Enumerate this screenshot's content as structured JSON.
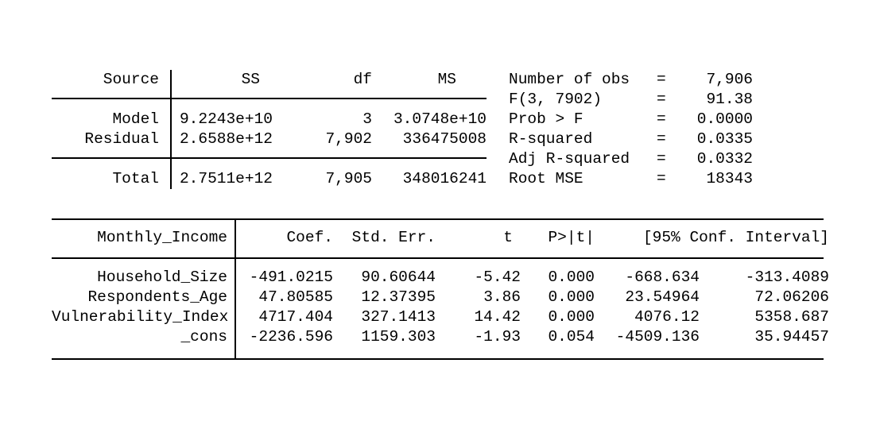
{
  "window": {
    "background": "#ffffff",
    "text_color": "#000000",
    "rule_color": "#000000",
    "description": "Stata regression results output"
  },
  "anova_table": {
    "header": {
      "source": "Source",
      "ss": "SS",
      "df": "df",
      "ms": "MS"
    },
    "rows": [
      {
        "source": "Model",
        "ss": "9.2243e+10",
        "df": "3",
        "ms": "3.0748e+10"
      },
      {
        "source": "Residual",
        "ss": "2.6588e+12",
        "df": "7,902",
        "ms": "336475008"
      },
      {
        "source": "Total",
        "ss": "2.7511e+12",
        "df": "7,905",
        "ms": "348016241"
      }
    ]
  },
  "fit_statistics": [
    {
      "label": "Number of obs",
      "eq": "=",
      "value": "7,906"
    },
    {
      "label": "F(3, 7902)",
      "eq": "=",
      "value": "91.38"
    },
    {
      "label": "Prob > F",
      "eq": "=",
      "value": "0.0000"
    },
    {
      "label": "R-squared",
      "eq": "=",
      "value": "0.0335"
    },
    {
      "label": "Adj R-squared",
      "eq": "=",
      "value": "0.0332"
    },
    {
      "label": "Root MSE",
      "eq": "=",
      "value": "18343"
    }
  ],
  "regression_table": {
    "dep_var_header": "Monthly_Income",
    "header": {
      "coef": "Coef.",
      "std_err": "Std. Err.",
      "t": "t",
      "p": "P>|t|",
      "ci": "[95% Conf. Interval]"
    },
    "rows": [
      {
        "var": "Household_Size",
        "coef": "-491.0215",
        "std_err": "90.60644",
        "t": "-5.42",
        "p": "0.000",
        "ci_low": "-668.634",
        "ci_high": "-313.4089"
      },
      {
        "var": "Respondents_Age",
        "coef": "47.80585",
        "std_err": "12.37395",
        "t": "3.86",
        "p": "0.000",
        "ci_low": "23.54964",
        "ci_high": "72.06206"
      },
      {
        "var": "Vulnerability_Index",
        "coef": "4717.404",
        "std_err": "327.1413",
        "t": "14.42",
        "p": "0.000",
        "ci_low": "4076.12",
        "ci_high": "5358.687"
      },
      {
        "var": "_cons",
        "coef": "-2236.596",
        "std_err": "1159.303",
        "t": "-1.93",
        "p": "0.054",
        "ci_low": "-4509.136",
        "ci_high": "35.94457"
      }
    ]
  }
}
